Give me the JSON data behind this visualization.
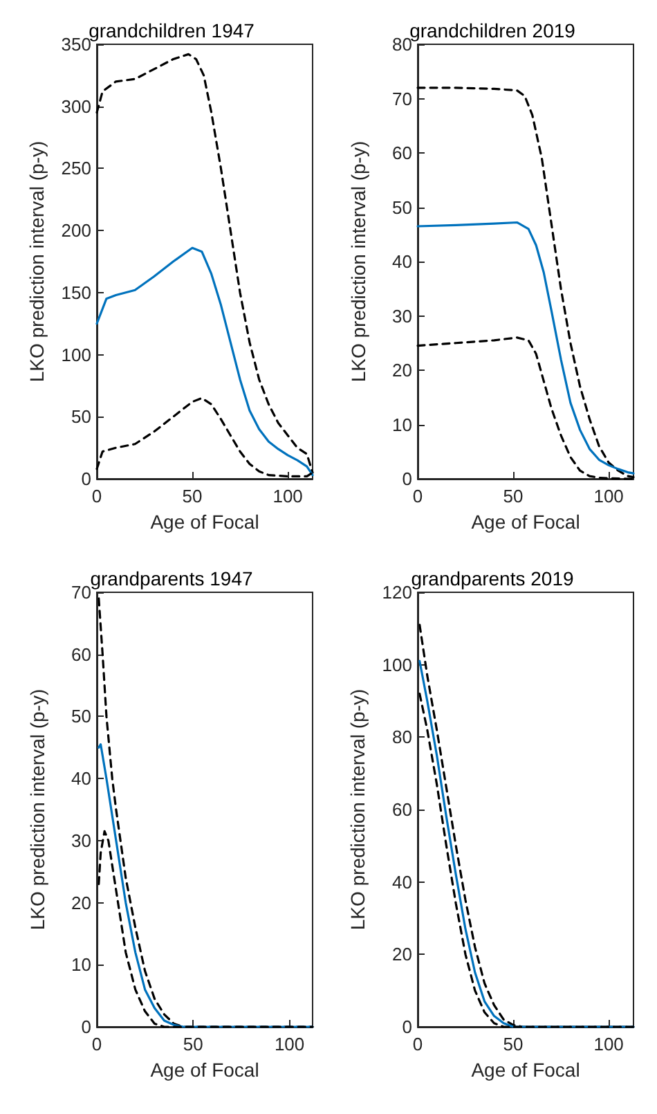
{
  "chart_data": [
    {
      "type": "line",
      "title": "grandchildren 1947",
      "xlabel": "Age of Focal",
      "ylabel": "LKO prediction interval (p-y)",
      "xlim": [
        0,
        113
      ],
      "xticks": [
        0,
        50,
        100
      ],
      "ylim": [
        0,
        350
      ],
      "yticks": [
        0,
        50,
        100,
        150,
        200,
        250,
        300,
        350
      ],
      "grid": false,
      "marker": "none",
      "series": [
        {
          "color": "#000000",
          "line_style": "dashed",
          "x": [
            0,
            3,
            10,
            20,
            30,
            40,
            48,
            52,
            56,
            60,
            65,
            70,
            75,
            80,
            85,
            90,
            95,
            100,
            105,
            110,
            113
          ],
          "values": [
            295,
            312,
            320,
            322,
            330,
            338,
            342,
            338,
            325,
            295,
            250,
            200,
            150,
            110,
            80,
            60,
            45,
            35,
            25,
            20,
            5
          ]
        },
        {
          "color": "#0072bd",
          "line_style": "solid",
          "x": [
            0,
            5,
            10,
            20,
            30,
            40,
            50,
            55,
            60,
            65,
            70,
            75,
            80,
            85,
            90,
            95,
            100,
            105,
            110,
            113
          ],
          "values": [
            125,
            145,
            148,
            152,
            163,
            175,
            186,
            183,
            165,
            140,
            110,
            80,
            55,
            40,
            30,
            24,
            19,
            15,
            10,
            3
          ]
        },
        {
          "color": "#000000",
          "line_style": "dashed",
          "x": [
            0,
            3,
            10,
            20,
            30,
            40,
            50,
            55,
            60,
            65,
            70,
            75,
            80,
            85,
            90,
            100,
            110,
            113
          ],
          "values": [
            8,
            22,
            25,
            28,
            38,
            50,
            62,
            65,
            60,
            48,
            35,
            22,
            12,
            6,
            3,
            2,
            2,
            5
          ]
        }
      ]
    },
    {
      "type": "line",
      "title": "grandchildren 2019",
      "xlabel": "Age of Focal",
      "ylabel": "LKO prediction interval (p-y)",
      "xlim": [
        0,
        113
      ],
      "xticks": [
        0,
        50,
        100
      ],
      "ylim": [
        0,
        80
      ],
      "yticks": [
        0,
        10,
        20,
        30,
        40,
        50,
        60,
        70,
        80
      ],
      "grid": false,
      "marker": "none",
      "series": [
        {
          "color": "#000000",
          "line_style": "dashed",
          "x": [
            0,
            20,
            40,
            52,
            56,
            60,
            65,
            70,
            75,
            80,
            85,
            90,
            95,
            100,
            105,
            110,
            113
          ],
          "values": [
            72,
            72,
            71.8,
            71.5,
            70.5,
            67,
            59,
            47,
            35,
            25,
            17,
            11,
            6,
            3,
            1.5,
            0.5,
            0.3
          ]
        },
        {
          "color": "#0072bd",
          "line_style": "solid",
          "x": [
            0,
            20,
            40,
            52,
            58,
            62,
            66,
            70,
            75,
            80,
            85,
            90,
            95,
            100,
            105,
            110,
            113
          ],
          "values": [
            46.5,
            46.7,
            47,
            47.2,
            46,
            43,
            38,
            31,
            22,
            14,
            9,
            5.5,
            3.5,
            2.5,
            1.8,
            1.2,
            1
          ]
        },
        {
          "color": "#000000",
          "line_style": "dashed",
          "x": [
            0,
            20,
            40,
            52,
            58,
            62,
            66,
            70,
            75,
            80,
            85,
            90,
            95,
            100,
            110,
            113
          ],
          "values": [
            24.5,
            25,
            25.5,
            26,
            25.5,
            23,
            18,
            13,
            8,
            4,
            1.5,
            0.5,
            0.2,
            0.1,
            0,
            0
          ]
        }
      ]
    },
    {
      "type": "line",
      "title": "grandparents 1947",
      "xlabel": "Age of Focal",
      "ylabel": "LKO prediction interval (p-y)",
      "xlim": [
        0,
        112
      ],
      "xticks": [
        0,
        50,
        100
      ],
      "ylim": [
        0,
        70
      ],
      "yticks": [
        0,
        10,
        20,
        30,
        40,
        50,
        60,
        70
      ],
      "grid": false,
      "marker": "none",
      "series": [
        {
          "color": "#000000",
          "line_style": "dashed",
          "x": [
            1,
            3,
            5,
            8,
            10,
            15,
            20,
            25,
            30,
            35,
            40,
            45,
            112
          ],
          "values": [
            69,
            60,
            50,
            40,
            35,
            24,
            16,
            9,
            4.5,
            2,
            0.5,
            0,
            0
          ]
        },
        {
          "color": "#0072bd",
          "line_style": "solid",
          "x": [
            1,
            2,
            5,
            10,
            15,
            20,
            25,
            30,
            35,
            40,
            45,
            112
          ],
          "values": [
            45,
            45.5,
            40,
            30,
            20,
            12,
            6,
            3,
            1,
            0.3,
            0,
            0
          ]
        },
        {
          "color": "#000000",
          "line_style": "dashed",
          "x": [
            1,
            2,
            4,
            6,
            10,
            15,
            20,
            25,
            30,
            35,
            112
          ],
          "values": [
            23,
            28,
            31.5,
            30,
            22,
            12,
            6,
            2.5,
            0.5,
            0,
            0
          ]
        }
      ]
    },
    {
      "type": "line",
      "title": "grandparents 2019",
      "xlabel": "Age of Focal",
      "ylabel": "LKO prediction interval (p-y)",
      "xlim": [
        0,
        113
      ],
      "xticks": [
        0,
        50,
        100
      ],
      "ylim": [
        0,
        120
      ],
      "yticks": [
        0,
        20,
        40,
        60,
        80,
        100,
        120
      ],
      "grid": false,
      "marker": "none",
      "series": [
        {
          "color": "#000000",
          "line_style": "dashed",
          "x": [
            1,
            5,
            10,
            15,
            20,
            25,
            30,
            35,
            40,
            45,
            50,
            55,
            113
          ],
          "values": [
            111,
            97,
            82,
            66,
            50,
            35,
            22,
            12,
            6,
            2,
            0.5,
            0,
            0
          ]
        },
        {
          "color": "#0072bd",
          "line_style": "solid",
          "x": [
            1,
            5,
            10,
            15,
            20,
            25,
            30,
            35,
            40,
            45,
            50,
            113
          ],
          "values": [
            101,
            90,
            75,
            58,
            42,
            27,
            15,
            7,
            3,
            1,
            0,
            0
          ]
        },
        {
          "color": "#000000",
          "line_style": "dashed",
          "x": [
            1,
            5,
            10,
            15,
            20,
            25,
            30,
            35,
            40,
            45,
            113
          ],
          "values": [
            92,
            82,
            67,
            50,
            34,
            20,
            10,
            4,
            1,
            0,
            0
          ]
        }
      ]
    }
  ]
}
